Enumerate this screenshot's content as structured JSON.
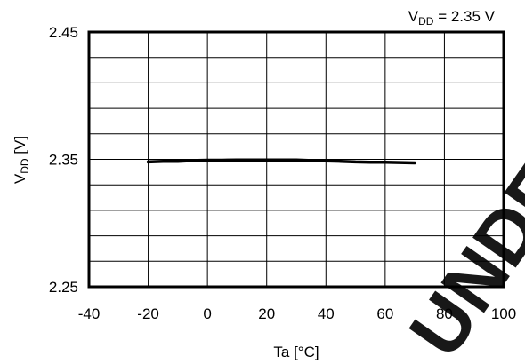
{
  "chart_data": {
    "type": "line",
    "title": "",
    "condition": {
      "prefix": "V",
      "sub": "DD",
      "suffix": " = 2.35 V"
    },
    "xlabel": "Ta [°C]",
    "ylabel": {
      "prefix": "V",
      "sub": "DD",
      "suffix": " [V]"
    },
    "xlim": [
      -40,
      100
    ],
    "ylim": [
      2.25,
      2.45
    ],
    "x_ticks": [
      -40,
      -20,
      0,
      20,
      40,
      60,
      80,
      100
    ],
    "y_ticks": [
      2.25,
      2.35,
      2.45
    ],
    "x_tick_labels": [
      "-40",
      "-20",
      "0",
      "20",
      "40",
      "60",
      "80",
      "100"
    ],
    "y_tick_labels": [
      "2.25",
      "2.35",
      "2.45"
    ],
    "grid": true,
    "legend": "none",
    "series": [
      {
        "color": "#000000",
        "x": [
          -20,
          -15,
          -10,
          -5,
          0,
          5,
          10,
          15,
          20,
          25,
          30,
          35,
          40,
          45,
          50,
          55,
          60,
          65,
          70
        ],
        "y": [
          2.348,
          2.3485,
          2.3485,
          2.349,
          2.3493,
          2.3493,
          2.3495,
          2.3495,
          2.3495,
          2.3495,
          2.3495,
          2.349,
          2.3488,
          2.3485,
          2.348,
          2.3478,
          2.3478,
          2.3475,
          2.3472
        ]
      }
    ]
  },
  "watermark": "UNDER"
}
